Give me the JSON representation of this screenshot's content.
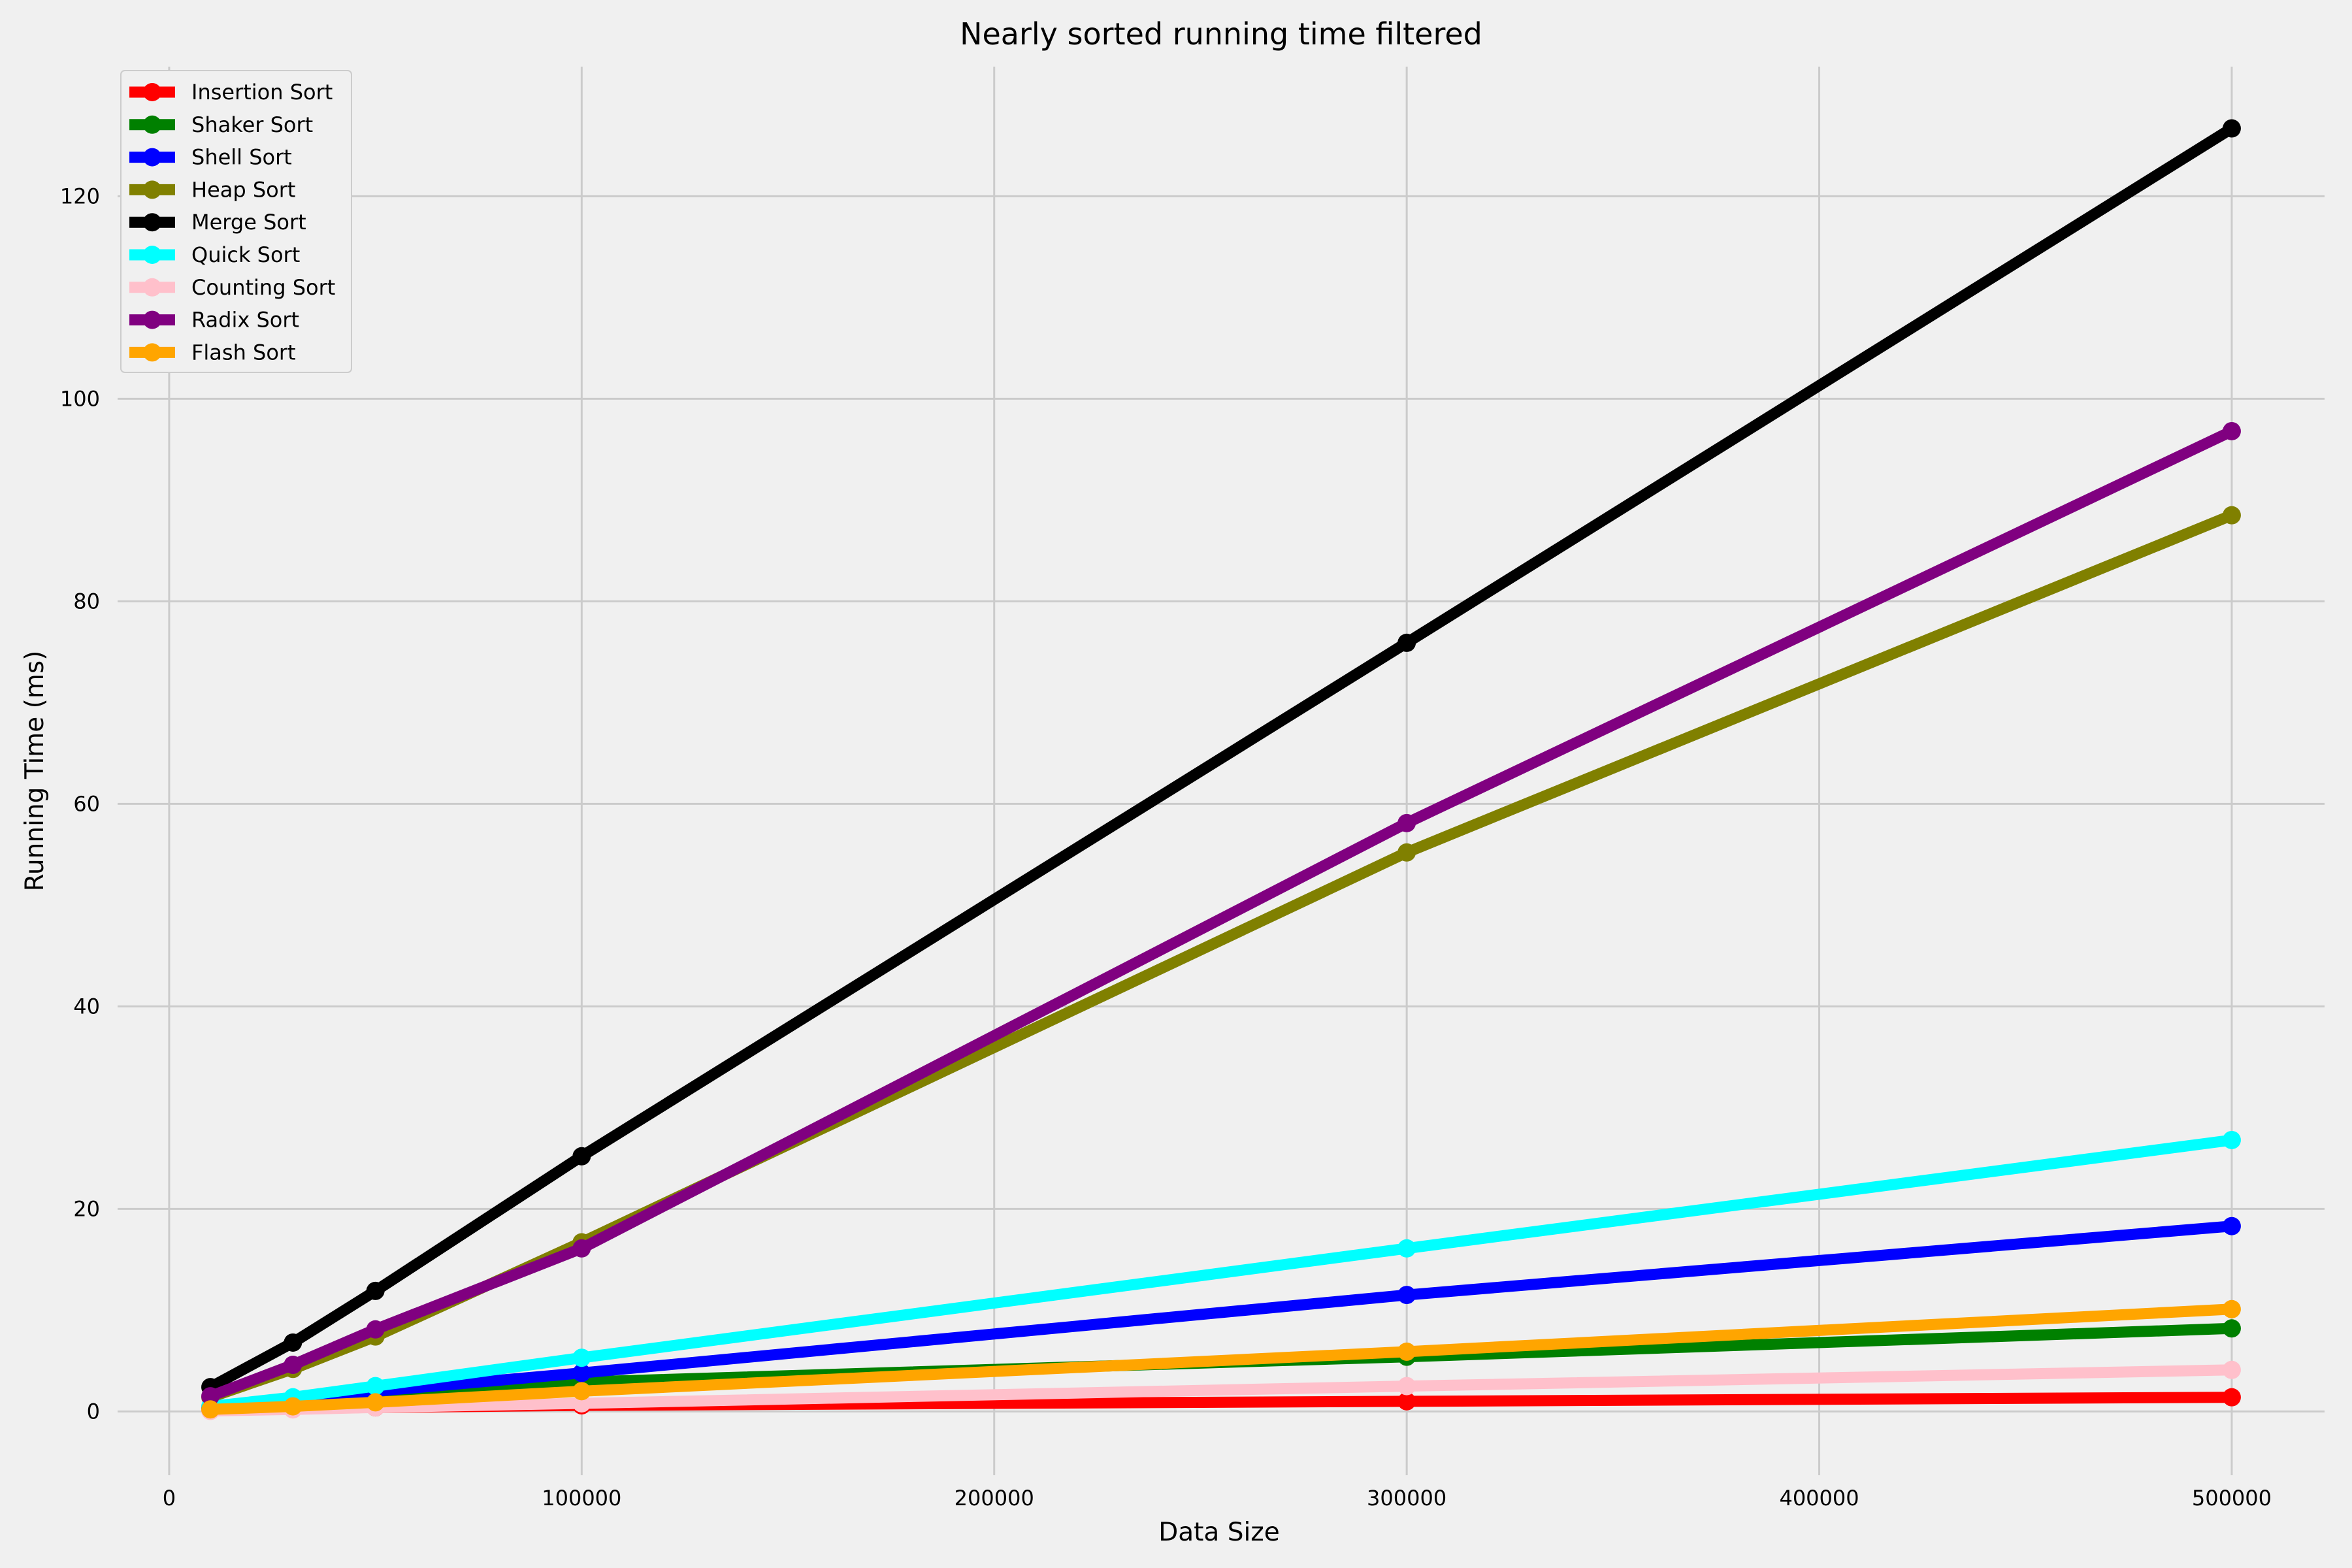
{
  "chart_data": {
    "type": "line",
    "title": "Nearly sorted running time filtered",
    "xlabel": "Data Size",
    "ylabel": "Running Time (ms)",
    "x": [
      10000,
      30000,
      50000,
      100000,
      300000,
      500000
    ],
    "xlim": [
      -12500,
      522500
    ],
    "ylim": [
      -6.3,
      132.8
    ],
    "xticks": [
      0,
      100000,
      200000,
      300000,
      400000,
      500000
    ],
    "yticks": [
      0,
      20,
      40,
      60,
      80,
      100,
      120
    ],
    "grid": true,
    "legend_position": "top-left",
    "series": [
      {
        "name": "Insertion Sort",
        "color": "#ff0000",
        "values": [
          0.1,
          0.3,
          0.4,
          0.6,
          1.0,
          1.4
        ]
      },
      {
        "name": "Shaker Sort",
        "color": "#008000",
        "values": [
          0.3,
          0.9,
          1.5,
          2.9,
          5.4,
          8.2
        ]
      },
      {
        "name": "Shell Sort",
        "color": "#0000ff",
        "values": [
          0.4,
          1.2,
          2.0,
          3.8,
          11.5,
          18.3
        ]
      },
      {
        "name": "Heap Sort",
        "color": "#808000",
        "values": [
          1.4,
          4.2,
          7.4,
          16.7,
          55.2,
          88.5
        ]
      },
      {
        "name": "Merge Sort",
        "color": "#000000",
        "values": [
          2.4,
          6.8,
          11.9,
          25.2,
          75.9,
          126.7
        ]
      },
      {
        "name": "Quick Sort",
        "color": "#00ffff",
        "values": [
          0.5,
          1.4,
          2.5,
          5.3,
          16.1,
          26.8
        ]
      },
      {
        "name": "Counting Sort",
        "color": "#ffc0cb",
        "values": [
          0.05,
          0.2,
          0.4,
          0.8,
          2.5,
          4.1
        ]
      },
      {
        "name": "Radix Sort",
        "color": "#800080",
        "values": [
          1.5,
          4.6,
          8.1,
          16.1,
          58.1,
          96.8
        ]
      },
      {
        "name": "Flash Sort",
        "color": "#ffa500",
        "values": [
          0.2,
          0.5,
          0.9,
          2.0,
          5.9,
          10.1
        ]
      }
    ]
  }
}
